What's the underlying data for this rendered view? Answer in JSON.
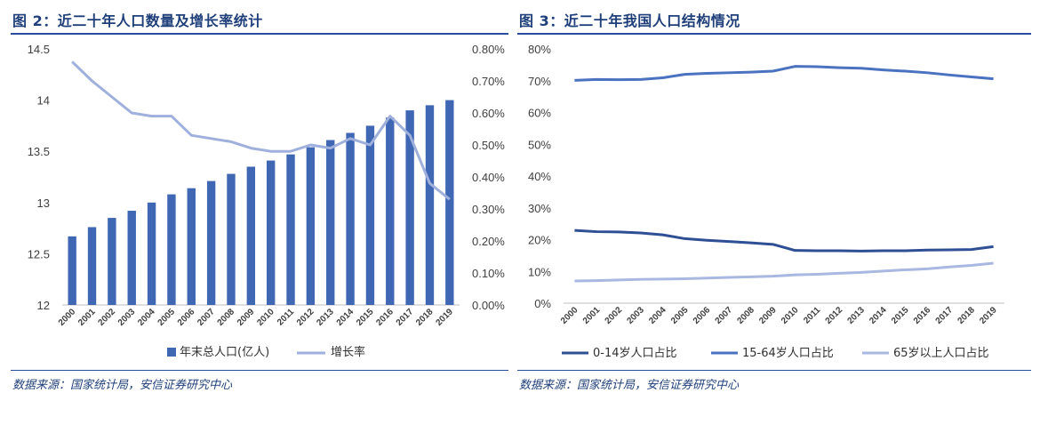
{
  "left": {
    "title": "图 2：近二十年人口数量及增长率统计",
    "source": "数据来源：国家统计局，安信证券研究中心"
  },
  "right": {
    "title": "图 3：近二十年我国人口结构情况",
    "source": "数据来源：国家统计局，安信证券研究中心"
  },
  "colors": {
    "bar": "#4067b4",
    "growth": "#9fb0dc",
    "s014": "#2f4f95",
    "s1564": "#4a72c0",
    "s65": "#a8b8e0",
    "title": "#1f3f7a",
    "rule": "#2a4f9a"
  },
  "chart_data": [
    {
      "type": "bar",
      "categories": [
        "2000",
        "2001",
        "2002",
        "2003",
        "2004",
        "2005",
        "2006",
        "2007",
        "2008",
        "2009",
        "2010",
        "2011",
        "2012",
        "2013",
        "2014",
        "2015",
        "2016",
        "2017",
        "2018",
        "2019"
      ],
      "yticks": [
        "12",
        "12.5",
        "13",
        "13.5",
        "14",
        "14.5"
      ],
      "y2ticks": [
        "0.00%",
        "0.10%",
        "0.20%",
        "0.30%",
        "0.40%",
        "0.50%",
        "0.60%",
        "0.70%",
        "0.80%"
      ],
      "ylim": [
        12,
        14.5
      ],
      "y2lim": [
        0,
        0.8
      ],
      "series": [
        {
          "name": "年末总人口(亿人)",
          "type": "bar",
          "axis": "left",
          "values": [
            12.67,
            12.76,
            12.85,
            12.92,
            13.0,
            13.08,
            13.14,
            13.21,
            13.28,
            13.35,
            13.41,
            13.47,
            13.54,
            13.61,
            13.68,
            13.75,
            13.83,
            13.9,
            13.95,
            14.0
          ]
        },
        {
          "name": "增长率",
          "type": "line",
          "axis": "right",
          "values": [
            0.76,
            0.7,
            0.65,
            0.6,
            0.59,
            0.59,
            0.53,
            0.52,
            0.51,
            0.49,
            0.48,
            0.48,
            0.5,
            0.49,
            0.52,
            0.5,
            0.59,
            0.53,
            0.38,
            0.33
          ]
        }
      ],
      "legend_position": "bottom"
    },
    {
      "type": "line",
      "categories": [
        "2000",
        "2001",
        "2002",
        "2003",
        "2004",
        "2005",
        "2006",
        "2007",
        "2008",
        "2009",
        "2010",
        "2011",
        "2012",
        "2013",
        "2014",
        "2015",
        "2016",
        "2017",
        "2018",
        "2019"
      ],
      "yticks": [
        "0%",
        "10%",
        "20%",
        "30%",
        "40%",
        "50%",
        "60%",
        "70%",
        "80%"
      ],
      "ylim": [
        0,
        80
      ],
      "series": [
        {
          "name": "0-14岁人口占比",
          "values": [
            22.9,
            22.5,
            22.4,
            22.1,
            21.5,
            20.3,
            19.8,
            19.4,
            19.0,
            18.5,
            16.6,
            16.5,
            16.5,
            16.4,
            16.5,
            16.5,
            16.7,
            16.8,
            16.9,
            17.8
          ]
        },
        {
          "name": "15-64岁人口占比",
          "values": [
            70.1,
            70.4,
            70.3,
            70.4,
            70.9,
            72.0,
            72.3,
            72.5,
            72.7,
            73.0,
            74.5,
            74.4,
            74.1,
            73.9,
            73.4,
            73.0,
            72.5,
            71.8,
            71.2,
            70.6
          ]
        },
        {
          "name": "65岁以上人口占比",
          "values": [
            7.0,
            7.1,
            7.3,
            7.5,
            7.6,
            7.7,
            7.9,
            8.1,
            8.3,
            8.5,
            8.9,
            9.1,
            9.4,
            9.7,
            10.1,
            10.5,
            10.8,
            11.4,
            11.9,
            12.6
          ]
        }
      ],
      "legend_position": "bottom"
    }
  ]
}
